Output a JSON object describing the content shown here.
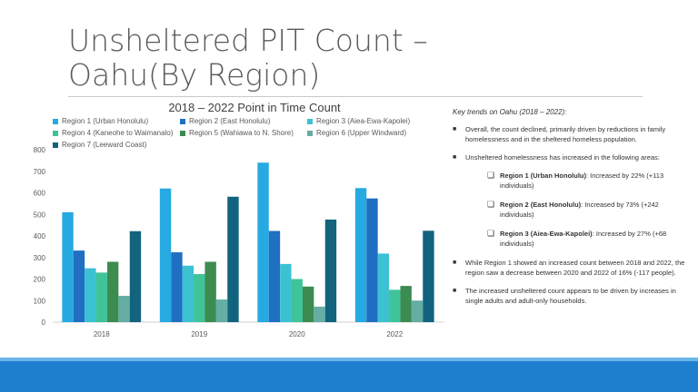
{
  "slide": {
    "title_line1": "Unsheltered PIT Count –",
    "title_line2": "Oahu(By Region)"
  },
  "chart_data": {
    "type": "bar",
    "title": "2018 – 2022 Point in Time Count",
    "categories": [
      "2018",
      "2019",
      "2020",
      "2022"
    ],
    "ylim": [
      0,
      800
    ],
    "yticks": [
      0,
      100,
      200,
      300,
      400,
      500,
      600,
      700,
      800
    ],
    "xlabel": "",
    "ylabel": "",
    "grid": false,
    "legend_position": "top",
    "series": [
      {
        "name": "Region 1 (Urban Honolulu)",
        "color": "#27a9e1",
        "values": [
          510,
          620,
          740,
          622
        ]
      },
      {
        "name": "Region 2 (East Honolulu)",
        "color": "#1f6fc2",
        "values": [
          332,
          324,
          423,
          574
        ]
      },
      {
        "name": "Region 3 (Aiea-Ewa-Kapolei)",
        "color": "#3cc1d3",
        "values": [
          250,
          262,
          270,
          318
        ]
      },
      {
        "name": "Region 4 (Kaneohe to Waimanalo)",
        "color": "#3fc49a",
        "values": [
          230,
          223,
          200,
          150
        ]
      },
      {
        "name": "Region 5 (Wahiawa to N. Shore)",
        "color": "#3c8c51",
        "values": [
          280,
          280,
          165,
          168
        ]
      },
      {
        "name": "Region 6 (Upper Windward)",
        "color": "#64aea4",
        "values": [
          122,
          105,
          72,
          100
        ]
      },
      {
        "name": "Region 7 (Leeward Coast)",
        "color": "#12637e",
        "values": [
          422,
          582,
          476,
          424
        ]
      }
    ]
  },
  "panel": {
    "heading": "Key trends on Oahu (2018 – 2022):",
    "bullet1": "Overall, the count declined, primarily driven by reductions in family homelessness and in the sheltered homeless population.",
    "bullet2": "Unsheltered homelessness has increased in the following areas:",
    "sub1_bold": "Region 1 (Urban Honolulu)",
    "sub1_text": ":  Increased by 22% (+113 individuals)",
    "sub2_bold": "Region 2 (East Honolulu)",
    "sub2_text": ": Increased by 73% (+242 individuals)",
    "sub3_bold": "Region 3 (Aiea-Ewa-Kapolei)",
    "sub3_text": ":  Increased by 27% (+68 individuals)",
    "bullet3": "While Region 1 showed an increased count between 2018 and 2022, the region saw a decrease between 2020 and 2022 of 16% (-117 people).",
    "bullet4": "The increased unsheltered count appears to be driven by increases in single adults and adult-only households.",
    "bullet_glyph": "■",
    "box_glyph": "❑"
  }
}
